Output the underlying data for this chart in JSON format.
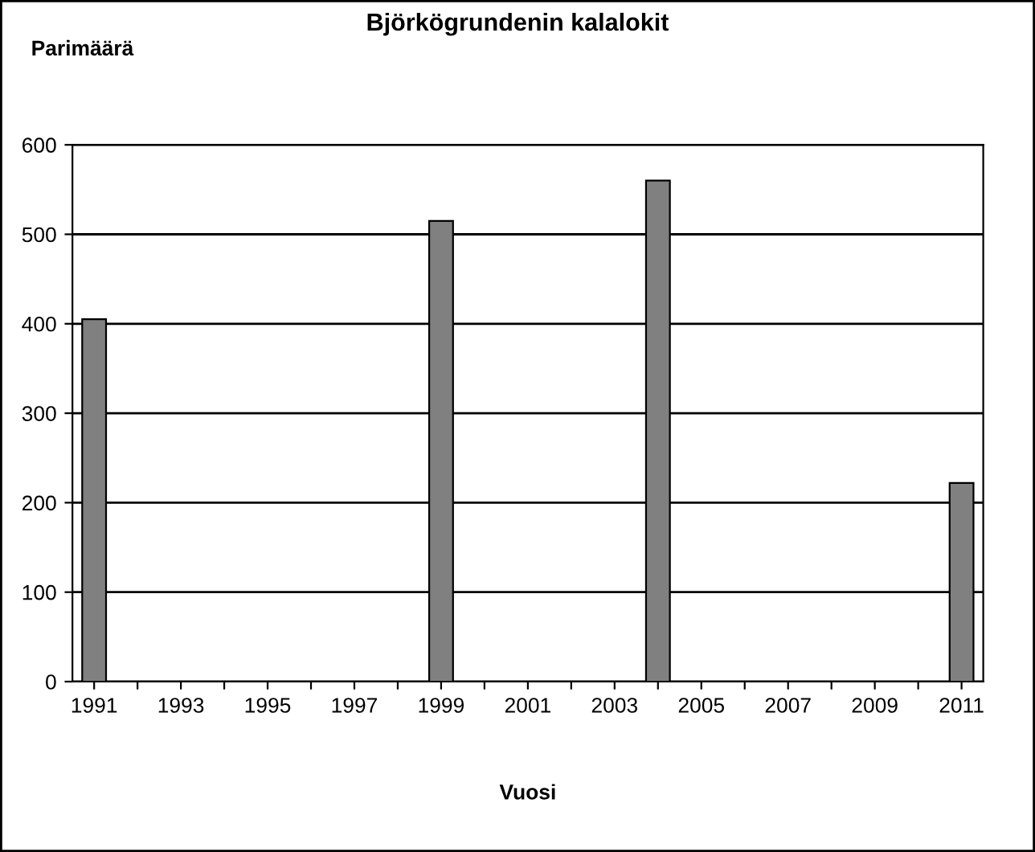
{
  "chart_data": {
    "type": "bar",
    "title": "Björkögrundenin kalalokit",
    "ylabel": "Parimäärä",
    "xlabel": "Vuosi",
    "categories": [
      "1991",
      null,
      "1993",
      null,
      "1995",
      null,
      "1997",
      null,
      "1999",
      null,
      "2001",
      null,
      "2003",
      null,
      "2005",
      null,
      "2007",
      null,
      "2009",
      null,
      "2011"
    ],
    "values": [
      405,
      null,
      null,
      null,
      null,
      null,
      null,
      null,
      515,
      null,
      null,
      null,
      null,
      560,
      null,
      null,
      null,
      null,
      null,
      null,
      222
    ],
    "color": "#808080",
    "ylim": [
      0,
      600
    ],
    "yticks": [
      0,
      100,
      200,
      300,
      400,
      500,
      600
    ],
    "grid": "y"
  }
}
